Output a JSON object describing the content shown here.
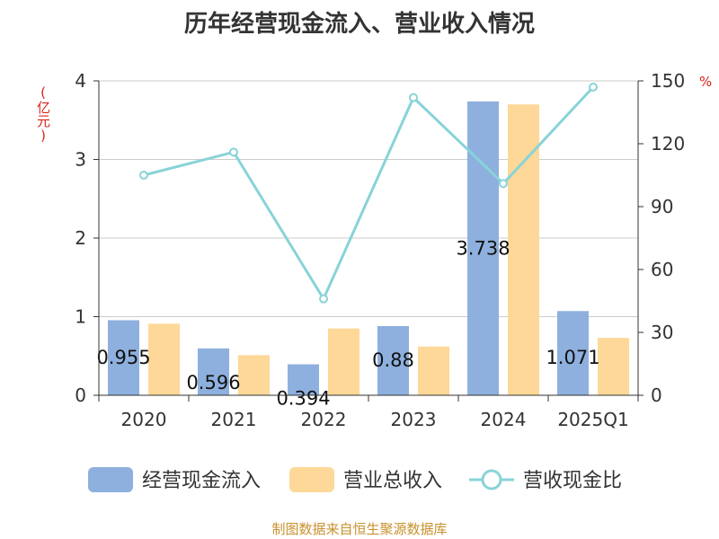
{
  "chart_data": {
    "type": "bar",
    "title": "历年经营现金流入、营业收入情况",
    "categories": [
      "2020",
      "2021",
      "2022",
      "2023",
      "2024",
      "2025Q1"
    ],
    "y_left": {
      "unit": "(亿元)",
      "ylim": [
        0,
        4
      ],
      "ticks": [
        "0",
        "1",
        "2",
        "3",
        "4"
      ]
    },
    "y_right": {
      "unit": "%",
      "ylim": [
        0,
        150
      ],
      "ticks": [
        "0",
        "30",
        "60",
        "90",
        "120",
        "150"
      ]
    },
    "series": [
      {
        "name": "经营现金流入",
        "type": "bar",
        "axis": "left",
        "color": "#8eb0de",
        "values": [
          0.955,
          0.596,
          0.394,
          0.88,
          3.738,
          1.071
        ],
        "labels": [
          "0.955",
          "0.596",
          "0.394",
          "0.88",
          "3.738",
          "1.071"
        ]
      },
      {
        "name": "营业总收入",
        "type": "bar",
        "axis": "left",
        "color": "#fdd898",
        "values": [
          0.91,
          0.51,
          0.85,
          0.62,
          3.7,
          0.73
        ]
      },
      {
        "name": "营收现金比",
        "type": "line",
        "axis": "right",
        "color": "#88d3d8",
        "values": [
          105,
          116,
          46,
          142,
          101,
          147
        ]
      }
    ],
    "grid": true,
    "legend": "bottom"
  },
  "footer": {
    "source": "制图数据来自恒生聚源数据库"
  }
}
